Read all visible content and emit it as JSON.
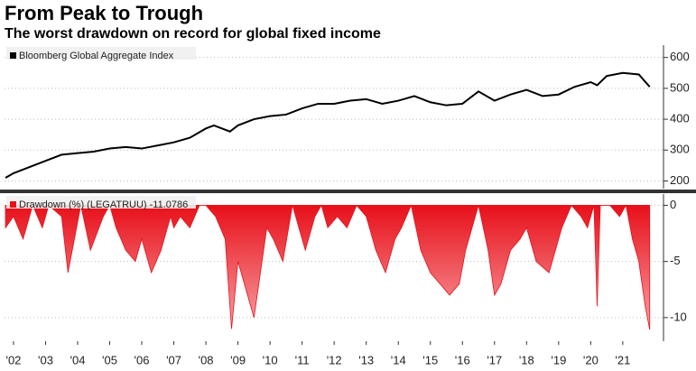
{
  "chart_data": [
    {
      "type": "line",
      "title": "From Peak to Trough",
      "subtitle": "The worst drawdown on record for global fixed income",
      "x": [
        2001.75,
        2002,
        2002.5,
        2003,
        2003.5,
        2004,
        2004.5,
        2005,
        2005.5,
        2006,
        2006.5,
        2007,
        2007.5,
        2008,
        2008.25,
        2008.75,
        2009,
        2009.5,
        2010,
        2010.5,
        2011,
        2011.5,
        2012,
        2012.5,
        2013,
        2013.5,
        2014,
        2014.5,
        2015,
        2015.5,
        2016,
        2016.5,
        2017,
        2017.5,
        2018,
        2018.5,
        2019,
        2019.5,
        2020,
        2020.2,
        2020.5,
        2021,
        2021.5,
        2021.84
      ],
      "series": [
        {
          "name": "Bloomberg Global Aggregate Index",
          "color": "#000000",
          "values": [
            210,
            225,
            245,
            265,
            285,
            290,
            295,
            305,
            310,
            305,
            315,
            325,
            340,
            370,
            380,
            360,
            380,
            400,
            410,
            415,
            435,
            450,
            450,
            460,
            465,
            450,
            460,
            475,
            455,
            445,
            450,
            490,
            460,
            480,
            495,
            475,
            480,
            505,
            520,
            510,
            540,
            550,
            545,
            505
          ]
        }
      ],
      "xlim": [
        2001.72,
        2022.27
      ],
      "ylim": [
        175,
        640
      ],
      "yticks": [
        200,
        300,
        400,
        500,
        600
      ],
      "grid": true
    },
    {
      "type": "area",
      "x": [
        2001.75,
        2002,
        2002.3,
        2002.6,
        2002.9,
        2003.1,
        2003.5,
        2003.7,
        2003.9,
        2004.1,
        2004.4,
        2004.8,
        2005,
        2005.2,
        2005.5,
        2005.8,
        2006,
        2006.3,
        2006.6,
        2006.9,
        2007,
        2007.2,
        2007.5,
        2007.8,
        2008,
        2008.3,
        2008.6,
        2008.8,
        2009,
        2009.2,
        2009.5,
        2009.7,
        2009.9,
        2010.1,
        2010.4,
        2010.7,
        2010.9,
        2011.1,
        2011.4,
        2011.6,
        2011.8,
        2012.1,
        2012.4,
        2012.7,
        2013,
        2013.3,
        2013.6,
        2013.9,
        2014.1,
        2014.4,
        2014.7,
        2015,
        2015.3,
        2015.6,
        2015.9,
        2016.1,
        2016.3,
        2016.5,
        2016.8,
        2017,
        2017.2,
        2017.5,
        2017.8,
        2018,
        2018.3,
        2018.7,
        2018.9,
        2019.1,
        2019.4,
        2019.7,
        2019.9,
        2020.1,
        2020.2,
        2020.3,
        2020.6,
        2020.9,
        2021.1,
        2021.3,
        2021.5,
        2021.7,
        2021.84
      ],
      "series": [
        {
          "name": "Drawdown (%) (LEGATRUU) -11.0786",
          "color": "#e8101a",
          "values": [
            -2,
            -1,
            -3,
            0,
            -2,
            0,
            -1,
            -6,
            -3,
            0,
            -4,
            -1,
            0,
            -2,
            -4,
            -5,
            -3,
            -6,
            -4,
            -1,
            -2,
            -1,
            -2,
            0,
            0,
            -1,
            -3,
            -11,
            -5,
            -7,
            -10,
            -6,
            -2,
            -3,
            -5,
            0,
            -2,
            -4,
            -1,
            0,
            -2,
            -1,
            -2,
            0,
            -1,
            -4,
            -6,
            -3,
            -2,
            0,
            -4,
            -6,
            -7,
            -8,
            -7,
            -4,
            -2,
            0,
            -4,
            -8,
            -7,
            -4,
            -3,
            -2,
            -5,
            -6,
            -4,
            -2,
            0,
            -1,
            -2,
            0,
            -9,
            0,
            0,
            -1,
            0,
            -3,
            -5,
            -9,
            -11.0786
          ]
        }
      ],
      "xlim": [
        2001.72,
        2022.27
      ],
      "ylim": [
        -12.1,
        1
      ],
      "yticks": [
        0,
        -5,
        -10
      ],
      "xticks": [
        {
          "value": 2002,
          "label": "'02"
        },
        {
          "value": 2003,
          "label": "'03"
        },
        {
          "value": 2004,
          "label": "'04"
        },
        {
          "value": 2005,
          "label": "'05"
        },
        {
          "value": 2006,
          "label": "'06"
        },
        {
          "value": 2007,
          "label": "'07"
        },
        {
          "value": 2008,
          "label": "'08"
        },
        {
          "value": 2009,
          "label": "'09"
        },
        {
          "value": 2010,
          "label": "'10"
        },
        {
          "value": 2011,
          "label": "'11"
        },
        {
          "value": 2012,
          "label": "'12"
        },
        {
          "value": 2013,
          "label": "'13"
        },
        {
          "value": 2014,
          "label": "'14"
        },
        {
          "value": 2015,
          "label": "'15"
        },
        {
          "value": 2016,
          "label": "'16"
        },
        {
          "value": 2017,
          "label": "'17"
        },
        {
          "value": 2018,
          "label": "'18"
        },
        {
          "value": 2019,
          "label": "'19"
        },
        {
          "value": 2020,
          "label": "'20"
        },
        {
          "value": 2021,
          "label": "'21"
        }
      ],
      "grid": true
    }
  ]
}
